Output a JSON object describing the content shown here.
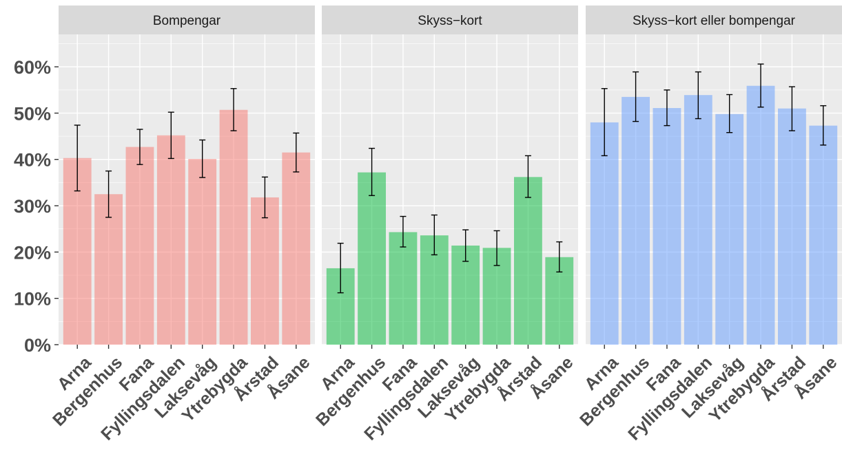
{
  "chart_data": {
    "type": "bar",
    "categories": [
      "Arna",
      "Bergenhus",
      "Fana",
      "Fyllingsdalen",
      "Laksevåg",
      "Ytrebygda",
      "Årstad",
      "Åsane"
    ],
    "y_ticks": [
      "0%",
      "10%",
      "20%",
      "30%",
      "40%",
      "50%",
      "60%"
    ],
    "ylim": [
      0,
      0.67
    ],
    "grid": true,
    "panels": [
      {
        "title": "Bompengar",
        "color": "#F8766D",
        "values": [
          0.403,
          0.325,
          0.427,
          0.452,
          0.401,
          0.507,
          0.318,
          0.415
        ],
        "err_low": [
          0.332,
          0.275,
          0.389,
          0.402,
          0.361,
          0.462,
          0.274,
          0.373
        ],
        "err_high": [
          0.474,
          0.375,
          0.465,
          0.502,
          0.442,
          0.553,
          0.362,
          0.457
        ]
      },
      {
        "title": "Skyss−kort",
        "color": "#00BA38",
        "values": [
          0.165,
          0.372,
          0.243,
          0.236,
          0.214,
          0.209,
          0.362,
          0.189
        ],
        "err_low": [
          0.112,
          0.322,
          0.211,
          0.194,
          0.18,
          0.171,
          0.318,
          0.157
        ],
        "err_high": [
          0.219,
          0.424,
          0.277,
          0.28,
          0.248,
          0.246,
          0.408,
          0.222
        ]
      },
      {
        "title": "Skyss−kort eller bompengar",
        "color": "#619CFF",
        "values": [
          0.48,
          0.535,
          0.511,
          0.539,
          0.498,
          0.559,
          0.51,
          0.473
        ],
        "err_low": [
          0.408,
          0.482,
          0.473,
          0.488,
          0.458,
          0.513,
          0.462,
          0.431
        ],
        "err_high": [
          0.553,
          0.589,
          0.55,
          0.589,
          0.54,
          0.606,
          0.557,
          0.516
        ]
      }
    ]
  }
}
